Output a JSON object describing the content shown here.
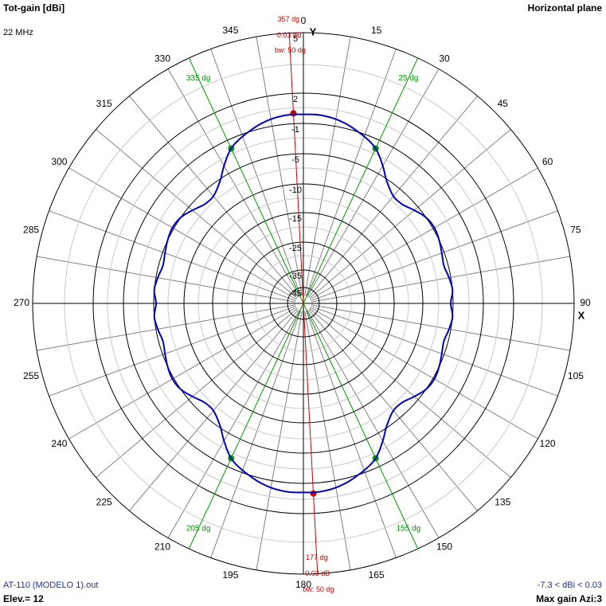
{
  "header": {
    "title": "Tot-gain [dBi]",
    "frequency": "22 MHz",
    "plane": "Horizontal plane"
  },
  "footer": {
    "file": "AT-110 (MODELO 1).out",
    "elevation": "Elev.= 12",
    "gain_range": "-7.3 < dBi < 0.03",
    "max_gain": "Max gain Azi:3"
  },
  "chart_data": {
    "type": "polar",
    "title": "Tot-gain [dBi]",
    "angle_unit": "deg",
    "angle_zero": "top",
    "angle_direction": "clockwise",
    "angle_spoke_step": 10,
    "angle_labels": [
      "0",
      "15",
      "30",
      "45",
      "60",
      "75",
      "90",
      "105",
      "120",
      "135",
      "150",
      "165",
      "180",
      "195",
      "210",
      "225",
      "240",
      "255",
      "270",
      "285",
      "300",
      "315",
      "330",
      "345"
    ],
    "axis_names": {
      "y": "Y",
      "x": "X"
    },
    "radial_scale": {
      "unit": "dBi",
      "max": 5,
      "rings": [
        5,
        2,
        -1,
        -5,
        -10,
        -15,
        -25,
        -35,
        -45
      ],
      "ring_labels": [
        "5",
        "2",
        "-1",
        "-5",
        "-10",
        "-15",
        "-25",
        "-35",
        "-45"
      ]
    },
    "series": [
      {
        "color": "#0000c0",
        "azimuth": [
          0,
          5,
          10,
          15,
          20,
          25,
          30,
          35,
          40,
          45,
          50,
          55,
          60,
          65,
          70,
          75,
          80,
          85,
          90,
          95,
          100,
          105,
          110,
          115,
          120,
          125,
          130,
          135,
          140,
          145,
          150,
          155,
          160,
          165,
          170,
          175,
          180,
          185,
          190,
          195,
          200,
          205,
          210,
          215,
          220,
          225,
          230,
          235,
          240,
          245,
          250,
          255,
          260,
          265,
          270,
          275,
          280,
          285,
          290,
          295,
          300,
          305,
          310,
          315,
          320,
          325,
          330,
          335,
          340,
          345,
          350,
          355
        ],
        "gain_dbi": [
          -0.1,
          -0.1,
          -0.3,
          -0.7,
          -1.3,
          -2.2,
          -3.8,
          -5.5,
          -6.6,
          -6.6,
          -5.8,
          -5.0,
          -4.8,
          -5.0,
          -5.4,
          -5.7,
          -5.3,
          -5.0,
          -5.4,
          -5.0,
          -5.3,
          -5.7,
          -5.4,
          -5.0,
          -4.8,
          -5.0,
          -5.8,
          -6.6,
          -6.6,
          -5.5,
          -3.8,
          -2.2,
          -1.3,
          -0.7,
          -0.3,
          -0.1,
          -0.1,
          -0.1,
          -0.3,
          -0.7,
          -1.3,
          -2.2,
          -3.8,
          -5.5,
          -6.6,
          -6.6,
          -5.8,
          -5.0,
          -4.8,
          -5.0,
          -5.4,
          -5.7,
          -5.3,
          -5.0,
          -5.4,
          -5.0,
          -5.3,
          -5.7,
          -5.4,
          -5.0,
          -4.8,
          -5.0,
          -5.8,
          -6.6,
          -6.6,
          -5.5,
          -3.8,
          -2.2,
          -1.3,
          -0.7,
          -0.3,
          -0.1
        ]
      }
    ],
    "markers": {
      "max_gain": [
        {
          "azimuth": 357,
          "label": "357 dg",
          "gain_label": "0.03 dB",
          "bw_label": "bw: 50 dg",
          "color": "#cc0000"
        },
        {
          "azimuth": 177,
          "label": "177 dg",
          "gain_label": "0.03 dB",
          "bw_label": "bw: 50 dg",
          "color": "#cc0000"
        }
      ],
      "beamwidth": [
        {
          "azimuth": 335,
          "label": "335 dg",
          "color": "#009900"
        },
        {
          "azimuth": 25,
          "label": "25 dg",
          "color": "#009900"
        },
        {
          "azimuth": 155,
          "label": "155 dg",
          "color": "#009900"
        },
        {
          "azimuth": 205,
          "label": "205 dg",
          "color": "#009900"
        }
      ]
    },
    "colors": {
      "pattern": "#0000c0",
      "max_marker": "#cc0000",
      "bw_marker": "#009900",
      "ring": "#000000",
      "spoke": "#808080",
      "axis": "#000000"
    }
  }
}
